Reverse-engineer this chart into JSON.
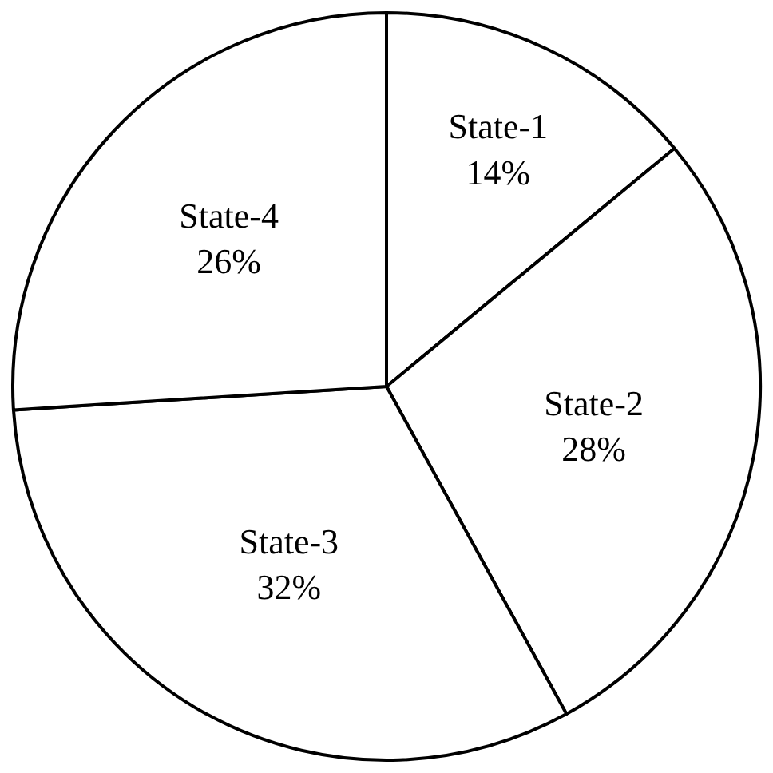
{
  "chart_data": {
    "type": "pie",
    "categories": [
      "State-1",
      "State-2",
      "State-3",
      "State-4"
    ],
    "values": [
      14,
      28,
      32,
      26
    ],
    "value_labels": [
      "14%",
      "28%",
      "32%",
      "26%"
    ],
    "colors": [
      "#ffffff",
      "#ffffff",
      "#ffffff",
      "#ffffff"
    ],
    "legend": false
  }
}
